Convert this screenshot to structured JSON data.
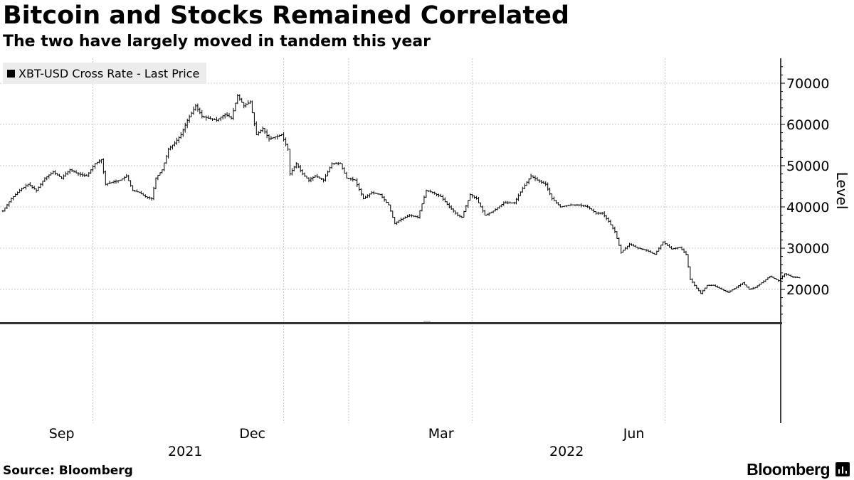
{
  "title": "Bitcoin and Stocks Remained Correlated",
  "subtitle": "The two have largely moved in tandem this year",
  "source": "Source: Bloomberg",
  "brand": "Bloomberg",
  "brand_icon": "bloomberg-terminal-icon",
  "colors": {
    "series": "#000000",
    "grid": "#cccccc",
    "legend_bg": "#ececec"
  },
  "chart_data": {
    "type": "line",
    "style": "ohlc-bars",
    "title": "Bitcoin and Stocks Remained Correlated",
    "subtitle": "The two have largely moved in tandem this year",
    "ylabel": "Level",
    "xlabel": "",
    "ylim": [
      12000,
      76000
    ],
    "y_ticks": [
      20000,
      30000,
      40000,
      50000,
      60000,
      70000
    ],
    "y_tick_labels": [
      "20000",
      "30000",
      "40000",
      "50000",
      "60000",
      "70000"
    ],
    "x_tick_labels": [
      "Sep",
      "Dec",
      "Mar",
      "Jun"
    ],
    "x_tick_dates": [
      "2021-09-01",
      "2021-12-01",
      "2022-03-01",
      "2022-06-01"
    ],
    "year_labels": [
      "2021",
      "2022"
    ],
    "year_label_dates": [
      "2021-10-15",
      "2022-04-15"
    ],
    "year_boundary_dates": [
      "2022-01-01"
    ],
    "legend": [
      "XBT-USD Cross Rate - Last Price"
    ],
    "legend_position": "top-left",
    "grid": true,
    "x_range": [
      "2021-07-20",
      "2022-07-18"
    ],
    "series": [
      {
        "name": "XBT-USD Cross Rate - Last Price",
        "points": [
          [
            "2021-07-20",
            39000
          ],
          [
            "2021-07-24",
            42000
          ],
          [
            "2021-07-28",
            44000
          ],
          [
            "2021-08-01",
            45500
          ],
          [
            "2021-08-05",
            44000
          ],
          [
            "2021-08-09",
            47000
          ],
          [
            "2021-08-13",
            48500
          ],
          [
            "2021-08-17",
            47000
          ],
          [
            "2021-08-21",
            49000
          ],
          [
            "2021-08-25",
            48000
          ],
          [
            "2021-08-29",
            47500
          ],
          [
            "2021-09-02",
            50500
          ],
          [
            "2021-09-05",
            51500
          ],
          [
            "2021-09-07",
            45500
          ],
          [
            "2021-09-10",
            46000
          ],
          [
            "2021-09-14",
            46500
          ],
          [
            "2021-09-17",
            47500
          ],
          [
            "2021-09-20",
            44000
          ],
          [
            "2021-09-23",
            43500
          ],
          [
            "2021-09-26",
            42500
          ],
          [
            "2021-09-29",
            42000
          ],
          [
            "2021-10-01",
            47000
          ],
          [
            "2021-10-04",
            49000
          ],
          [
            "2021-10-07",
            54000
          ],
          [
            "2021-10-10",
            55500
          ],
          [
            "2021-10-13",
            57500
          ],
          [
            "2021-10-16",
            61000
          ],
          [
            "2021-10-20",
            64500
          ],
          [
            "2021-10-23",
            62000
          ],
          [
            "2021-10-26",
            61500
          ],
          [
            "2021-10-30",
            61000
          ],
          [
            "2021-11-03",
            62500
          ],
          [
            "2021-11-06",
            61500
          ],
          [
            "2021-11-09",
            67000
          ],
          [
            "2021-11-12",
            64500
          ],
          [
            "2021-11-15",
            65500
          ],
          [
            "2021-11-18",
            57500
          ],
          [
            "2021-11-21",
            59000
          ],
          [
            "2021-11-24",
            56500
          ],
          [
            "2021-11-27",
            57000
          ],
          [
            "2021-11-30",
            57500
          ],
          [
            "2021-12-03",
            54000
          ],
          [
            "2021-12-04",
            48000
          ],
          [
            "2021-12-07",
            50500
          ],
          [
            "2021-12-10",
            48000
          ],
          [
            "2021-12-13",
            46500
          ],
          [
            "2021-12-16",
            47500
          ],
          [
            "2021-12-20",
            46500
          ],
          [
            "2021-12-24",
            50500
          ],
          [
            "2021-12-28",
            50500
          ],
          [
            "2021-12-31",
            47000
          ],
          [
            "2022-01-04",
            46500
          ],
          [
            "2022-01-08",
            42000
          ],
          [
            "2022-01-12",
            43500
          ],
          [
            "2022-01-16",
            43000
          ],
          [
            "2022-01-20",
            40500
          ],
          [
            "2022-01-23",
            36000
          ],
          [
            "2022-01-26",
            37000
          ],
          [
            "2022-01-30",
            38000
          ],
          [
            "2022-02-03",
            37500
          ],
          [
            "2022-02-07",
            44000
          ],
          [
            "2022-02-10",
            43500
          ],
          [
            "2022-02-14",
            42500
          ],
          [
            "2022-02-18",
            40000
          ],
          [
            "2022-02-22",
            38000
          ],
          [
            "2022-02-24",
            37500
          ],
          [
            "2022-02-28",
            43000
          ],
          [
            "2022-03-03",
            42000
          ],
          [
            "2022-03-07",
            38000
          ],
          [
            "2022-03-11",
            39000
          ],
          [
            "2022-03-16",
            41000
          ],
          [
            "2022-03-21",
            41000
          ],
          [
            "2022-03-25",
            44500
          ],
          [
            "2022-03-29",
            47500
          ],
          [
            "2022-04-01",
            46500
          ],
          [
            "2022-04-05",
            45500
          ],
          [
            "2022-04-08",
            42000
          ],
          [
            "2022-04-12",
            40000
          ],
          [
            "2022-04-17",
            40500
          ],
          [
            "2022-04-21",
            40500
          ],
          [
            "2022-04-25",
            40000
          ],
          [
            "2022-04-29",
            38500
          ],
          [
            "2022-05-02",
            38500
          ],
          [
            "2022-05-05",
            36500
          ],
          [
            "2022-05-08",
            34000
          ],
          [
            "2022-05-11",
            29000
          ],
          [
            "2022-05-15",
            31000
          ],
          [
            "2022-05-19",
            30000
          ],
          [
            "2022-05-23",
            29500
          ],
          [
            "2022-05-27",
            28500
          ],
          [
            "2022-05-31",
            31500
          ],
          [
            "2022-06-04",
            29800
          ],
          [
            "2022-06-08",
            30200
          ],
          [
            "2022-06-11",
            28500
          ],
          [
            "2022-06-13",
            22500
          ],
          [
            "2022-06-15",
            21000
          ],
          [
            "2022-06-18",
            19000
          ],
          [
            "2022-06-21",
            21000
          ],
          [
            "2022-06-24",
            21000
          ],
          [
            "2022-06-28",
            20000
          ],
          [
            "2022-07-01",
            19300
          ],
          [
            "2022-07-04",
            20200
          ],
          [
            "2022-07-08",
            21600
          ],
          [
            "2022-07-11",
            20000
          ],
          [
            "2022-07-14",
            20500
          ],
          [
            "2022-07-18",
            22000
          ],
          [
            "2022-07-21",
            23200
          ],
          [
            "2022-07-25",
            22100
          ],
          [
            "2022-07-28",
            23800
          ],
          [
            "2022-08-01",
            23000
          ],
          [
            "2022-08-04",
            22800
          ]
        ]
      }
    ]
  }
}
